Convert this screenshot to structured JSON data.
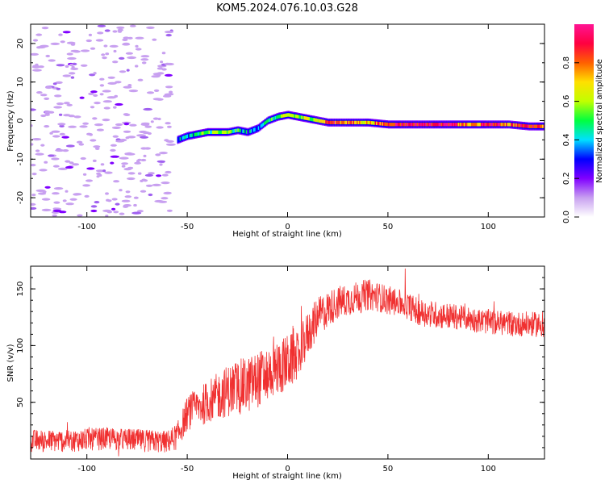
{
  "title": "KOM5.2024.076.10.03.G28",
  "chart_data": [
    {
      "type": "heatmap",
      "xlabel": "Height of straight line (km)",
      "ylabel": "Frequency (Hz)",
      "xlim": [
        -128,
        128
      ],
      "ylim": [
        -25,
        25
      ],
      "xticks": [
        -100,
        -50,
        0,
        50,
        100
      ],
      "yticks": [
        -20,
        -10,
        0,
        10,
        20
      ],
      "colorbar": {
        "label": "Normalized spectral amplitude",
        "range": [
          0.0,
          1.0
        ],
        "ticks": [
          "0.0",
          "0.2",
          "0.4",
          "0.6",
          "0.8"
        ],
        "colors": [
          "#ffffff",
          "#c8a0f0",
          "#8000ff",
          "#0000ff",
          "#00e0ff",
          "#00ff40",
          "#c0ff00",
          "#ffe000",
          "#ff6000",
          "#ff0040",
          "#ff1493"
        ]
      },
      "ridge": {
        "x": [
          -55,
          -50,
          -45,
          -40,
          -35,
          -30,
          -25,
          -20,
          -15,
          -10,
          -5,
          0,
          5,
          10,
          15,
          20,
          30,
          40,
          50,
          60,
          70,
          80,
          90,
          100,
          110,
          120,
          128
        ],
        "freq_hz": [
          -5,
          -4,
          -3.5,
          -3,
          -3,
          -3,
          -2.5,
          -3,
          -2,
          0,
          1,
          1.5,
          1,
          0.5,
          0,
          -0.5,
          -0.5,
          -0.5,
          -1,
          -1,
          -1,
          -1,
          -1,
          -1,
          -1,
          -1.5,
          -1.5
        ],
        "amplitude": [
          0.35,
          0.4,
          0.45,
          0.5,
          0.55,
          0.5,
          0.45,
          0.35,
          0.4,
          0.45,
          0.5,
          0.6,
          0.55,
          0.6,
          0.65,
          0.85,
          0.8,
          0.7,
          0.85,
          0.95,
          0.95,
          0.95,
          0.7,
          0.9,
          0.8,
          0.9,
          0.85
        ]
      },
      "noise_region_x": [
        -128,
        -57
      ],
      "noise_amplitude_range": [
        0.0,
        0.15
      ]
    },
    {
      "type": "line",
      "xlabel": "Height of straight line (km)",
      "ylabel": "SNR (v/v)",
      "xlim": [
        -128,
        128
      ],
      "ylim": [
        0,
        170
      ],
      "xticks": [
        -100,
        -50,
        0,
        50,
        100
      ],
      "yticks": [
        50,
        100,
        150
      ],
      "grid": false,
      "color": "#f03030",
      "series": [
        {
          "x": [
            -128,
            -110,
            -100,
            -90,
            -80,
            -70,
            -60,
            -55,
            -50,
            -45,
            -40,
            -35,
            -30,
            -25,
            -20,
            -15,
            -10,
            -5,
            0,
            5,
            10,
            15,
            20,
            25,
            30,
            35,
            40,
            45,
            50,
            55,
            60,
            65,
            70,
            75,
            80,
            85,
            90,
            95,
            100,
            105,
            110,
            115,
            120,
            128
          ],
          "values": [
            16,
            16,
            17,
            18,
            17,
            16,
            15,
            20,
            40,
            45,
            50,
            55,
            60,
            63,
            65,
            70,
            75,
            80,
            85,
            90,
            110,
            125,
            132,
            138,
            140,
            143,
            145,
            143,
            140,
            138,
            135,
            130,
            128,
            127,
            126,
            125,
            124,
            122,
            121,
            120,
            120,
            119,
            119,
            118
          ],
          "noise_amplitude": [
            10,
            10,
            10,
            10,
            10,
            10,
            10,
            12,
            15,
            17,
            19,
            21,
            23,
            25,
            25,
            25,
            25,
            25,
            25,
            22,
            20,
            18,
            16,
            15,
            14,
            14,
            14,
            13,
            13,
            12,
            12,
            12,
            12,
            12,
            12,
            11,
            11,
            11,
            11,
            11,
            11,
            11,
            11,
            11
          ]
        }
      ]
    }
  ]
}
